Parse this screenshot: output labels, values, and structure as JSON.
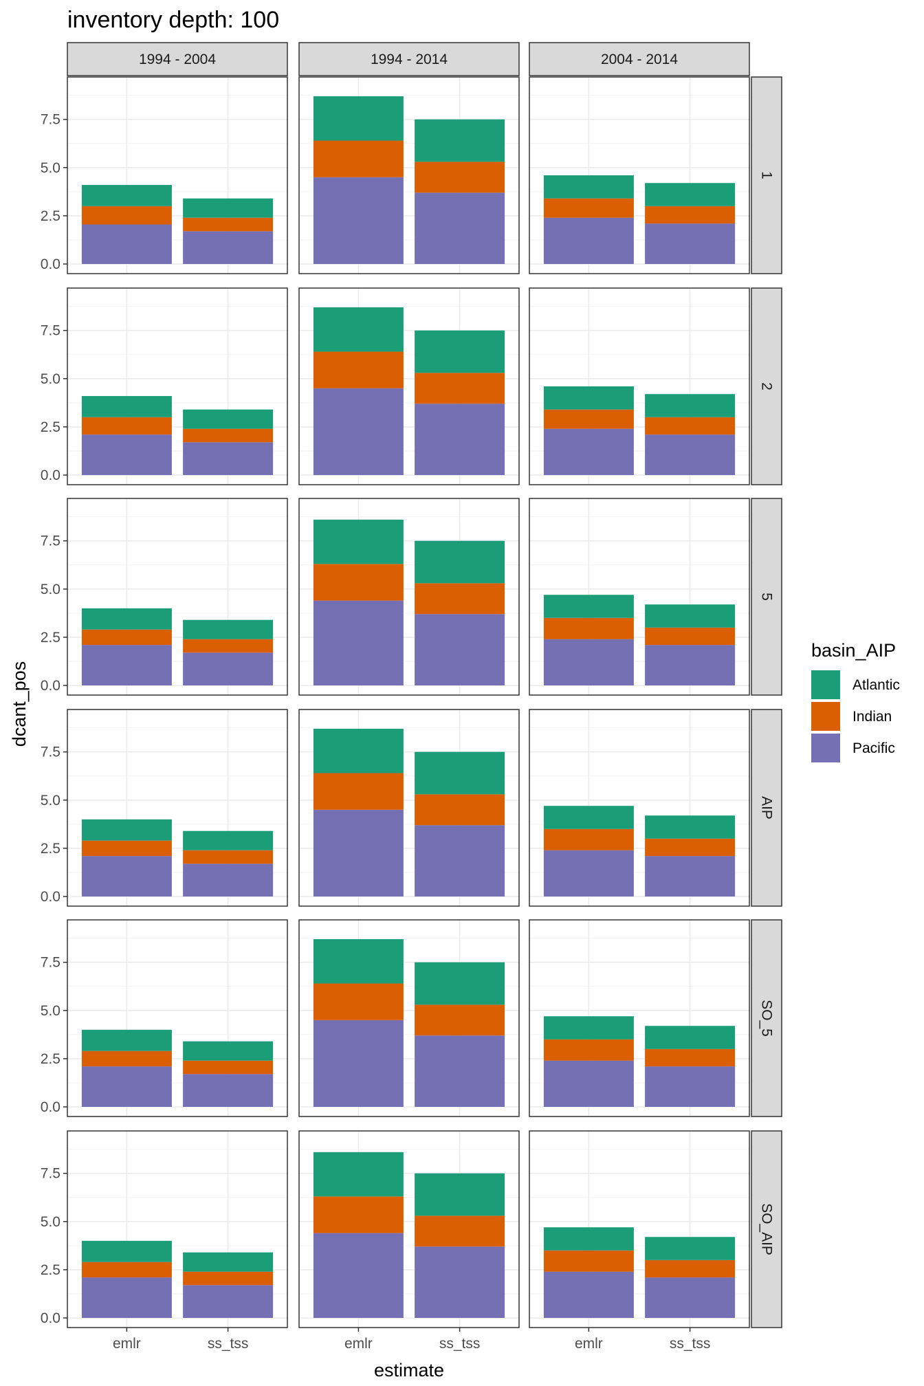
{
  "chart_data": {
    "type": "bar",
    "stacked": true,
    "title": "inventory depth: 100",
    "xlabel": "estimate",
    "ylabel": "dcant_pos",
    "categories": [
      "emlr",
      "ss_tss"
    ],
    "facet_cols": [
      "1994 - 2004",
      "1994 - 2014",
      "2004 - 2014"
    ],
    "facet_rows": [
      "1",
      "2",
      "5",
      "AIP",
      "SO_5",
      "SO_AIP"
    ],
    "ylim": [
      0,
      9.2
    ],
    "yticks": [
      0,
      2.5,
      5,
      7.5
    ],
    "ytick_labels": [
      "0.0",
      "2.5",
      "5.0",
      "7.5"
    ],
    "grid": true,
    "legend": {
      "title": "basin_AIP",
      "position": "right",
      "entries": [
        "Atlantic",
        "Indian",
        "Pacific"
      ]
    },
    "colors": {
      "Atlantic": "#1b9e77",
      "Indian": "#d95f02",
      "Pacific": "#7570b3"
    },
    "stack_order": [
      "Pacific",
      "Indian",
      "Atlantic"
    ],
    "panels": [
      {
        "row": "1",
        "col": "1994 - 2004",
        "series": {
          "Pacific": [
            2.05,
            1.7
          ],
          "Indian": [
            0.95,
            0.7
          ],
          "Atlantic": [
            1.1,
            1.0
          ]
        }
      },
      {
        "row": "1",
        "col": "1994 - 2014",
        "series": {
          "Pacific": [
            4.5,
            3.7
          ],
          "Indian": [
            1.9,
            1.6
          ],
          "Atlantic": [
            2.3,
            2.2
          ]
        }
      },
      {
        "row": "1",
        "col": "2004 - 2014",
        "series": {
          "Pacific": [
            2.4,
            2.1
          ],
          "Indian": [
            1.0,
            0.9
          ],
          "Atlantic": [
            1.2,
            1.2
          ]
        }
      },
      {
        "row": "2",
        "col": "1994 - 2004",
        "series": {
          "Pacific": [
            2.1,
            1.7
          ],
          "Indian": [
            0.9,
            0.7
          ],
          "Atlantic": [
            1.1,
            1.0
          ]
        }
      },
      {
        "row": "2",
        "col": "1994 - 2014",
        "series": {
          "Pacific": [
            4.5,
            3.7
          ],
          "Indian": [
            1.9,
            1.6
          ],
          "Atlantic": [
            2.3,
            2.2
          ]
        }
      },
      {
        "row": "2",
        "col": "2004 - 2014",
        "series": {
          "Pacific": [
            2.4,
            2.1
          ],
          "Indian": [
            1.0,
            0.9
          ],
          "Atlantic": [
            1.2,
            1.2
          ]
        }
      },
      {
        "row": "5",
        "col": "1994 - 2004",
        "series": {
          "Pacific": [
            2.1,
            1.7
          ],
          "Indian": [
            0.8,
            0.7
          ],
          "Atlantic": [
            1.1,
            1.0
          ]
        }
      },
      {
        "row": "5",
        "col": "1994 - 2014",
        "series": {
          "Pacific": [
            4.4,
            3.7
          ],
          "Indian": [
            1.9,
            1.6
          ],
          "Atlantic": [
            2.3,
            2.2
          ]
        }
      },
      {
        "row": "5",
        "col": "2004 - 2014",
        "series": {
          "Pacific": [
            2.4,
            2.1
          ],
          "Indian": [
            1.1,
            0.9
          ],
          "Atlantic": [
            1.2,
            1.2
          ]
        }
      },
      {
        "row": "AIP",
        "col": "1994 - 2004",
        "series": {
          "Pacific": [
            2.1,
            1.7
          ],
          "Indian": [
            0.8,
            0.7
          ],
          "Atlantic": [
            1.1,
            1.0
          ]
        }
      },
      {
        "row": "AIP",
        "col": "1994 - 2014",
        "series": {
          "Pacific": [
            4.5,
            3.7
          ],
          "Indian": [
            1.9,
            1.6
          ],
          "Atlantic": [
            2.3,
            2.2
          ]
        }
      },
      {
        "row": "AIP",
        "col": "2004 - 2014",
        "series": {
          "Pacific": [
            2.4,
            2.1
          ],
          "Indian": [
            1.1,
            0.9
          ],
          "Atlantic": [
            1.2,
            1.2
          ]
        }
      },
      {
        "row": "SO_5",
        "col": "1994 - 2004",
        "series": {
          "Pacific": [
            2.1,
            1.7
          ],
          "Indian": [
            0.8,
            0.7
          ],
          "Atlantic": [
            1.1,
            1.0
          ]
        }
      },
      {
        "row": "SO_5",
        "col": "1994 - 2014",
        "series": {
          "Pacific": [
            4.5,
            3.7
          ],
          "Indian": [
            1.9,
            1.6
          ],
          "Atlantic": [
            2.3,
            2.2
          ]
        }
      },
      {
        "row": "SO_5",
        "col": "2004 - 2014",
        "series": {
          "Pacific": [
            2.4,
            2.1
          ],
          "Indian": [
            1.1,
            0.9
          ],
          "Atlantic": [
            1.2,
            1.2
          ]
        }
      },
      {
        "row": "SO_AIP",
        "col": "1994 - 2004",
        "series": {
          "Pacific": [
            2.1,
            1.7
          ],
          "Indian": [
            0.8,
            0.7
          ],
          "Atlantic": [
            1.1,
            1.0
          ]
        }
      },
      {
        "row": "SO_AIP",
        "col": "1994 - 2014",
        "series": {
          "Pacific": [
            4.4,
            3.7
          ],
          "Indian": [
            1.9,
            1.6
          ],
          "Atlantic": [
            2.3,
            2.2
          ]
        }
      },
      {
        "row": "SO_AIP",
        "col": "2004 - 2014",
        "series": {
          "Pacific": [
            2.4,
            2.1
          ],
          "Indian": [
            1.1,
            0.9
          ],
          "Atlantic": [
            1.2,
            1.2
          ]
        }
      }
    ]
  }
}
